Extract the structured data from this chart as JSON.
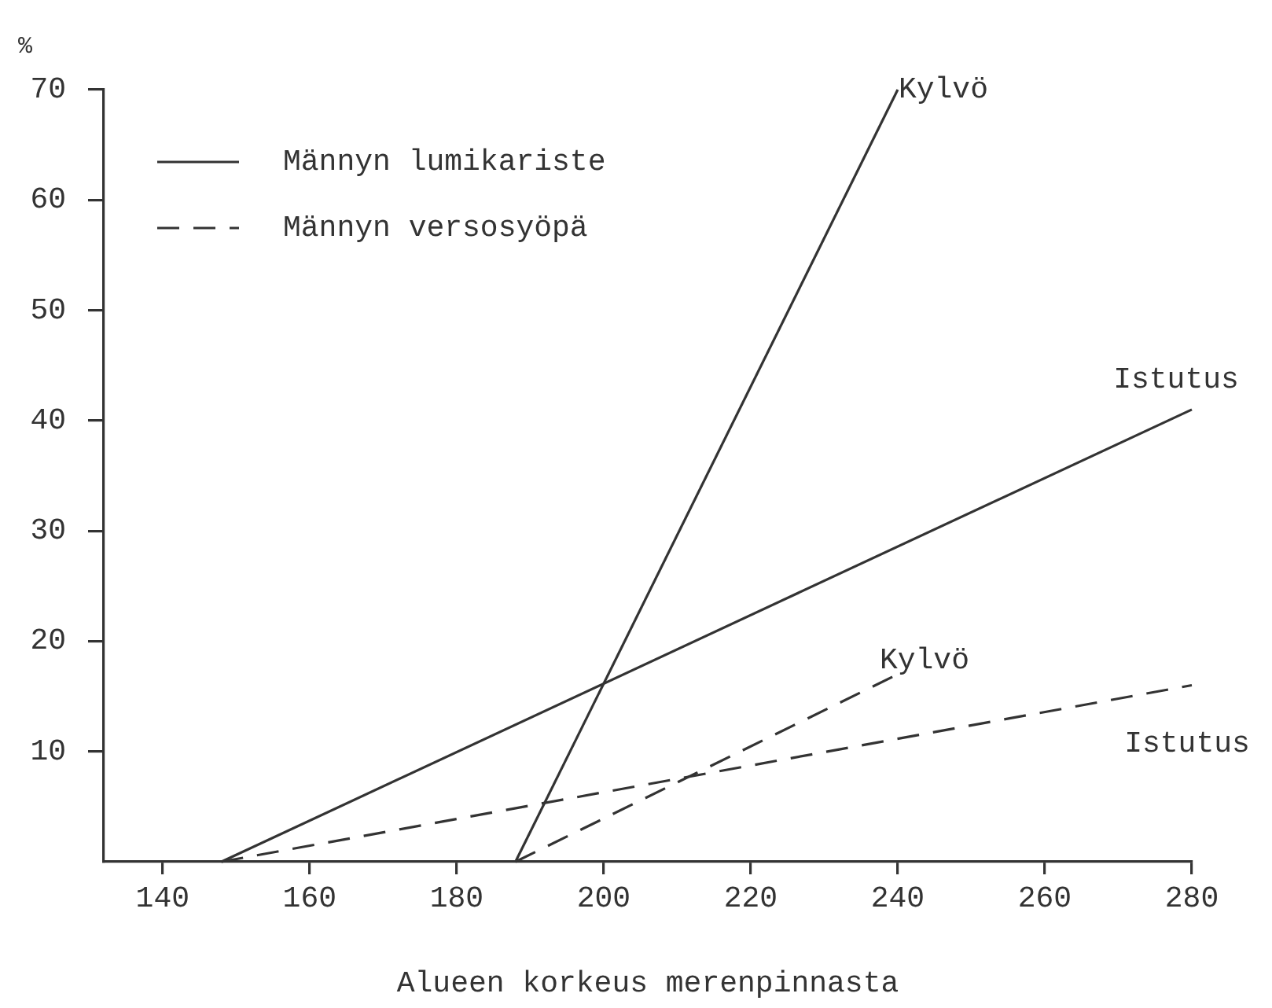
{
  "chart_data": {
    "type": "line",
    "xlabel": "Alueen korkeus merenpinnasta",
    "ylabel": "%",
    "xlim": [
      132,
      280
    ],
    "xticks": [
      140,
      160,
      180,
      200,
      220,
      240,
      260,
      280
    ],
    "ylim": [
      0,
      70
    ],
    "yticks": [
      10,
      20,
      30,
      40,
      50,
      60,
      70
    ],
    "grid": false,
    "legend": "top left",
    "marker": "none",
    "series": [
      {
        "name": "Männyn lumikariste",
        "color": "#333333",
        "line_style": "solid",
        "x": [
          188,
          240
        ],
        "values": [
          0,
          70
        ]
      },
      {
        "color": "#333333",
        "line_style": "solid",
        "x": [
          148,
          280
        ],
        "values": [
          0,
          41
        ]
      },
      {
        "name": "Männyn versosyöpä",
        "color": "#333333",
        "line_style": "dashed",
        "x": [
          188,
          240
        ],
        "values": [
          0,
          17
        ]
      },
      {
        "color": "#333333",
        "line_style": "dashed",
        "x": [
          148,
          280
        ],
        "values": [
          0,
          16
        ]
      }
    ],
    "annotations": [
      "Kylvö",
      "Istutus",
      "Kylvö",
      "Istutus"
    ]
  }
}
